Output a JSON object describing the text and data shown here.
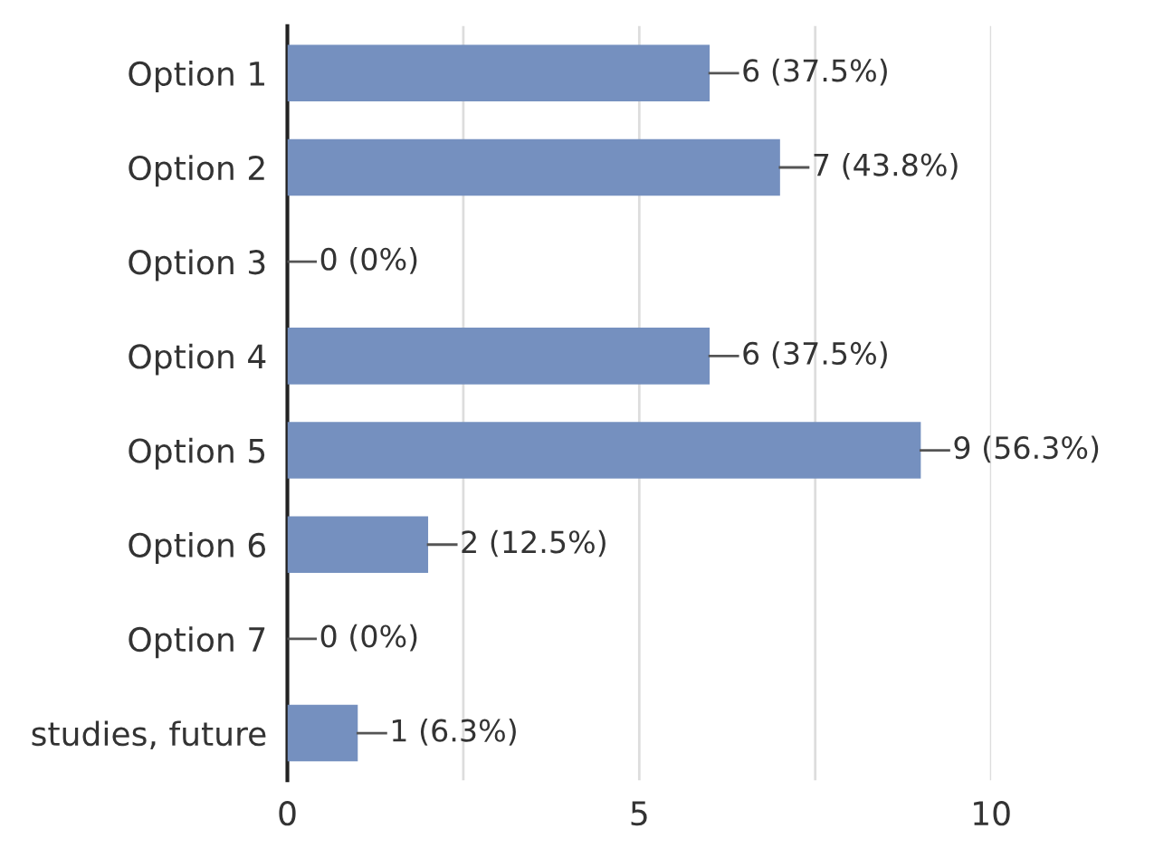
{
  "chart_data": {
    "type": "bar",
    "orientation": "horizontal",
    "categories": [
      "Option 1",
      "Option 2",
      "Option 3",
      "Option 4",
      "Option 5",
      "Option 6",
      "Option 7",
      "studies, future"
    ],
    "values": [
      6,
      7,
      0,
      6,
      9,
      2,
      0,
      1
    ],
    "value_labels": [
      "6 (37.5%)",
      "7 (43.8%)",
      "0 (0%)",
      "6 (37.5%)",
      "9 (56.3%)",
      "2 (12.5%)",
      "0 (0%)",
      "1 (6.3%)"
    ],
    "color": "#7590bf",
    "xlim": [
      0,
      10
    ],
    "xticks": [
      0,
      {
        "value": 2.5,
        "label": null
      },
      5,
      {
        "value": 7.5,
        "label": null
      },
      10
    ],
    "grid": "x"
  }
}
